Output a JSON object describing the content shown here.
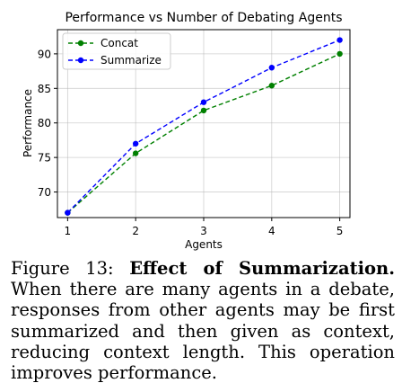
{
  "chart_data": {
    "type": "line",
    "title": "Performance vs Number of Debating Agents",
    "xlabel": "Agents",
    "ylabel": "Performance",
    "x": [
      1,
      2,
      3,
      4,
      5
    ],
    "xlim": [
      0.85,
      5.15
    ],
    "ylim": [
      66.3,
      93.5
    ],
    "xticks": [
      1,
      2,
      3,
      4,
      5
    ],
    "yticks": [
      70,
      75,
      80,
      85,
      90
    ],
    "grid": true,
    "legend_position": "top-left",
    "series": [
      {
        "name": "Concat",
        "color": "#008000",
        "values": [
          67.0,
          75.6,
          81.8,
          85.4,
          90.0
        ]
      },
      {
        "name": "Summarize",
        "color": "#0000ff",
        "values": [
          67.0,
          77.0,
          83.0,
          88.0,
          92.0
        ]
      }
    ]
  },
  "caption": {
    "label": "Figure 13: ",
    "bold": "Effect of Summarization.",
    "text": " When there are many agents in a debate, responses from other agents may be first summarized and then given as context, reducing context length. This operation improves performance."
  }
}
